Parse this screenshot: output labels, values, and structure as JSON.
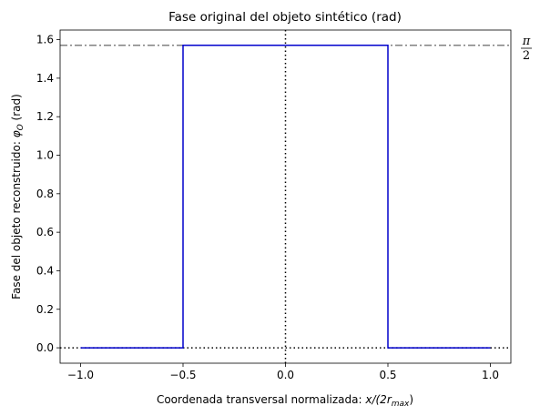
{
  "chart_data": {
    "type": "line",
    "title": "Fase original del objeto sintético (rad)",
    "xlabel": "Coordenada transversal normalizada: x/(2r_max)",
    "ylabel": "Fase del objeto reconstruido: φ_O (rad)",
    "xlim": [
      -1.1,
      1.1
    ],
    "ylim": [
      -0.08,
      1.65
    ],
    "xticks": [
      -1.0,
      -0.5,
      0.0,
      0.5,
      1.0
    ],
    "xtick_labels": [
      "−1.0",
      "−0.5",
      "0.0",
      "0.5",
      "1.0"
    ],
    "yticks": [
      0.0,
      0.2,
      0.4,
      0.6,
      0.8,
      1.0,
      1.2,
      1.4,
      1.6
    ],
    "ytick_labels": [
      "0.0",
      "0.2",
      "0.4",
      "0.6",
      "0.8",
      "1.0",
      "1.2",
      "1.4",
      "1.6"
    ],
    "grid": false,
    "series": [
      {
        "color": "#0000cc",
        "x": [
          -1.0,
          -0.5,
          -0.5,
          0.5,
          0.5,
          1.0
        ],
        "y": [
          0.0,
          0.0,
          1.5708,
          1.5708,
          0.0,
          0.0
        ]
      }
    ],
    "reference_lines": [
      {
        "orientation": "horizontal",
        "value": 1.5708,
        "style": "dashdot",
        "color": "#808080",
        "label_num": "π",
        "label_den": "2"
      },
      {
        "orientation": "horizontal",
        "value": 0.0,
        "style": "dotted",
        "color": "#000000"
      },
      {
        "orientation": "vertical",
        "value": 0.0,
        "style": "dotted",
        "color": "#000000"
      }
    ]
  }
}
